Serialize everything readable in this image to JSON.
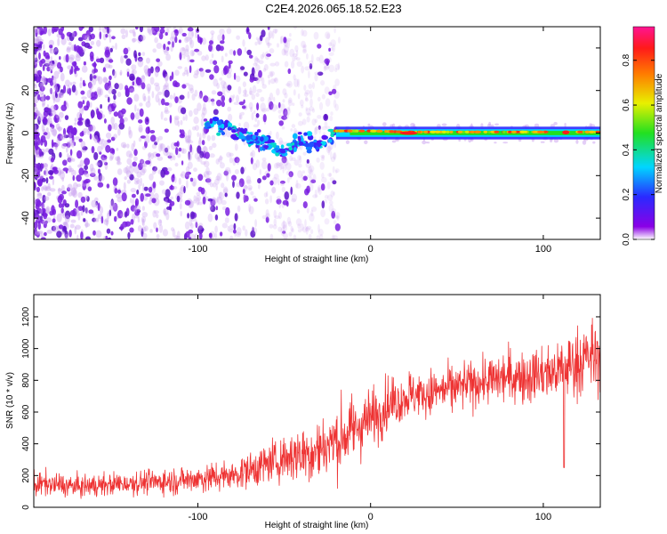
{
  "title": "C2E4.2026.065.18.52.E23",
  "colors": {
    "snr_line": "#ee3333",
    "background": "#ffffff",
    "axis": "#000000"
  },
  "chart_data": [
    {
      "type": "heatmap",
      "xlabel": "Height of straight line (km)",
      "ylabel": "Frequency (Hz)",
      "xlim": [
        -195,
        133
      ],
      "ylim": [
        -50,
        50
      ],
      "xticks": [
        -100,
        0,
        100
      ],
      "xtick_labels": [
        "-100",
        "0",
        "100"
      ],
      "yticks": [
        -40,
        -20,
        0,
        20,
        40
      ],
      "ytick_labels": [
        "-40",
        "-20",
        "0",
        "20",
        "40"
      ],
      "colorbar": {
        "label": "Normalized spectral amplitude",
        "range": [
          0,
          0.95
        ],
        "ticks": [
          0,
          0.2,
          0.4,
          0.6,
          0.8
        ],
        "tick_labels": [
          "0.0",
          "0.2",
          "0.4",
          "0.6",
          "0.8"
        ],
        "colormap": "rainbow (violet-blue-cyan-green-yellow-red-magenta)"
      },
      "description_series": [
        {
          "name": "noise",
          "x_range": [
            -195,
            -20
          ],
          "freq_range": [
            -50,
            50
          ],
          "amplitude": 0.05
        },
        {
          "name": "wandering tone",
          "x": [
            -95,
            -80,
            -65,
            -50,
            -40,
            -30,
            -20
          ],
          "freq": [
            5,
            2,
            -4,
            -9,
            -3,
            -6,
            0
          ],
          "amplitude": 0.25
        },
        {
          "name": "stable tone",
          "x": [
            -20,
            0,
            20,
            40,
            60,
            80,
            100,
            133
          ],
          "freq": [
            1,
            1,
            0.5,
            0.5,
            0.5,
            0.5,
            0.5,
            0.5
          ],
          "amplitude": 0.75
        }
      ]
    },
    {
      "type": "line",
      "xlabel": "Height of straight line (km)",
      "ylabel": "SNR (10 * v/v)",
      "xlim": [
        -195,
        133
      ],
      "ylim": [
        0,
        1340
      ],
      "xticks": [
        -100,
        0,
        100
      ],
      "xtick_labels": [
        "-100",
        "0",
        "100"
      ],
      "yticks": [
        0,
        200,
        400,
        600,
        800,
        1000,
        1200
      ],
      "ytick_labels": [
        "0",
        "200",
        "400",
        "600",
        "800",
        "1000",
        "1200"
      ],
      "series": [
        {
          "name": "SNR",
          "x": [
            -195,
            -170,
            -140,
            -110,
            -80,
            -60,
            -45,
            -30,
            -20,
            -10,
            0,
            10,
            20,
            40,
            60,
            80,
            100,
            110,
            120,
            133
          ],
          "mean": [
            150,
            130,
            150,
            170,
            200,
            270,
            330,
            360,
            420,
            490,
            560,
            650,
            700,
            730,
            780,
            820,
            840,
            860,
            920,
            960
          ],
          "spread": [
            70,
            60,
            60,
            70,
            80,
            110,
            150,
            180,
            190,
            180,
            160,
            150,
            140,
            130,
            130,
            140,
            150,
            180,
            200,
            200
          ]
        }
      ]
    }
  ]
}
